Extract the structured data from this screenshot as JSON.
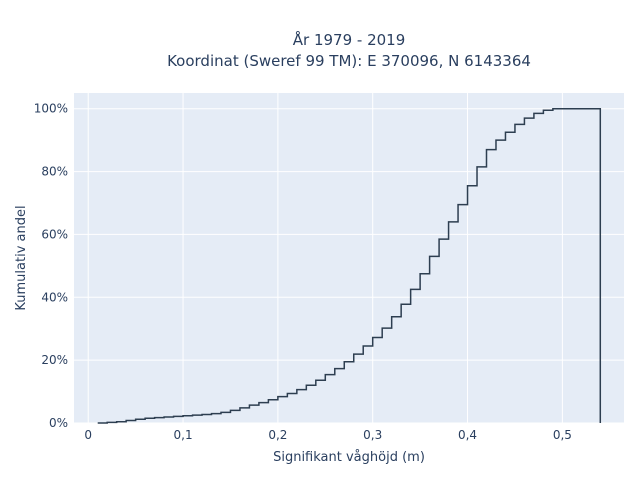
{
  "chart_data": {
    "type": "line",
    "subtype": "ecdf-step",
    "title_line1": "År 1979 - 2019",
    "title_line2": "Koordinat (Sweref 99 TM): E 370096, N 6143364",
    "xlabel": "Signifikant våghöjd (m)",
    "ylabel": "Kumulativ andel",
    "xlim": [
      -0.015,
      0.565
    ],
    "ylim": [
      0,
      1.05
    ],
    "x_ticks": [
      0,
      0.1,
      0.2,
      0.3,
      0.4,
      0.5
    ],
    "x_tick_labels": [
      "0",
      "0,1",
      "0,2",
      "0,3",
      "0,4",
      "0,5"
    ],
    "y_ticks": [
      0,
      0.2,
      0.4,
      0.6,
      0.8,
      1.0
    ],
    "y_tick_labels": [
      "0%",
      "20%",
      "40%",
      "60%",
      "80%",
      "100%"
    ],
    "grid": true,
    "colors": {
      "plot_background": "#e5ecf6",
      "grid": "#ffffff",
      "line": "#2d3e50",
      "text": "#2a3f5f"
    },
    "series": [
      {
        "x": [
          0.01,
          0.02,
          0.03,
          0.04,
          0.05,
          0.06,
          0.07,
          0.08,
          0.09,
          0.1,
          0.11,
          0.12,
          0.13,
          0.14,
          0.15,
          0.16,
          0.17,
          0.18,
          0.19,
          0.2,
          0.21,
          0.22,
          0.23,
          0.24,
          0.25,
          0.26,
          0.27,
          0.28,
          0.29,
          0.3,
          0.31,
          0.32,
          0.33,
          0.34,
          0.35,
          0.36,
          0.37,
          0.38,
          0.39,
          0.4,
          0.41,
          0.42,
          0.43,
          0.44,
          0.45,
          0.46,
          0.47,
          0.48,
          0.49,
          0.5,
          0.51,
          0.52,
          0.53,
          0.54
        ],
        "y": [
          0.0,
          0.002,
          0.004,
          0.008,
          0.012,
          0.015,
          0.017,
          0.019,
          0.021,
          0.023,
          0.025,
          0.027,
          0.03,
          0.034,
          0.04,
          0.048,
          0.057,
          0.065,
          0.074,
          0.084,
          0.094,
          0.106,
          0.12,
          0.136,
          0.154,
          0.173,
          0.195,
          0.219,
          0.245,
          0.272,
          0.302,
          0.338,
          0.378,
          0.425,
          0.475,
          0.53,
          0.585,
          0.64,
          0.695,
          0.755,
          0.815,
          0.87,
          0.9,
          0.925,
          0.95,
          0.97,
          0.985,
          0.995,
          1.0,
          1.0,
          1.0,
          1.0,
          1.0,
          1.0
        ]
      }
    ]
  }
}
